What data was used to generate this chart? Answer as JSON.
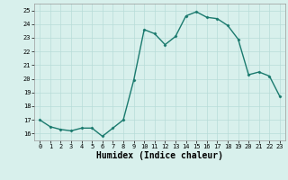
{
  "x": [
    0,
    1,
    2,
    3,
    4,
    5,
    6,
    7,
    8,
    9,
    10,
    11,
    12,
    13,
    14,
    15,
    16,
    17,
    18,
    19,
    20,
    21,
    22,
    23
  ],
  "y": [
    17.0,
    16.5,
    16.3,
    16.2,
    16.4,
    16.4,
    15.8,
    16.4,
    17.0,
    19.9,
    23.6,
    23.3,
    22.5,
    23.1,
    24.6,
    24.9,
    24.5,
    24.4,
    23.9,
    22.9,
    20.3,
    20.5,
    20.2,
    18.7
  ],
  "line_color": "#1a7a6e",
  "marker": "D",
  "marker_size": 1.5,
  "bg_color": "#d8f0ec",
  "grid_color": "#b8dcd8",
  "xlabel": "Humidex (Indice chaleur)",
  "ylim": [
    15.5,
    25.5
  ],
  "xlim": [
    -0.5,
    23.5
  ],
  "yticks": [
    16,
    17,
    18,
    19,
    20,
    21,
    22,
    23,
    24,
    25
  ],
  "xticks": [
    0,
    1,
    2,
    3,
    4,
    5,
    6,
    7,
    8,
    9,
    10,
    11,
    12,
    13,
    14,
    15,
    16,
    17,
    18,
    19,
    20,
    21,
    22,
    23
  ],
  "tick_fontsize": 5.0,
  "xlabel_fontsize": 7.0,
  "line_width": 1.0
}
